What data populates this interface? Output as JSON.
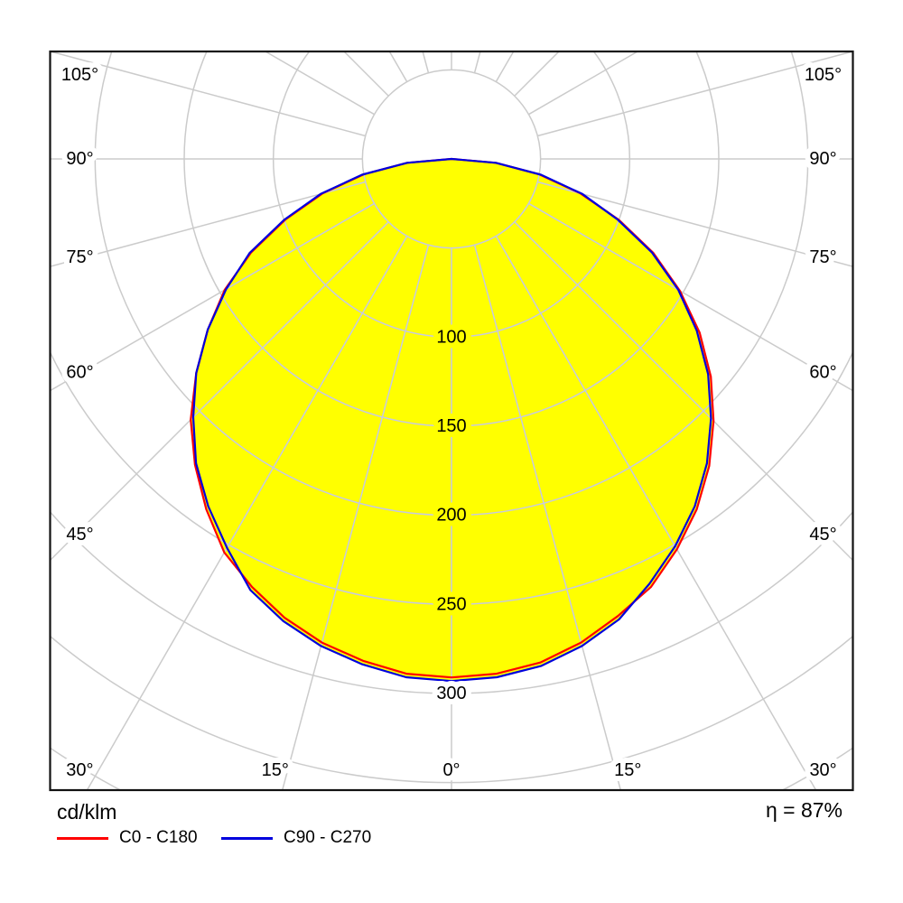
{
  "chart_data": {
    "type": "polar",
    "subtype": "photometric-intensity-distribution",
    "unit_label": "cd/klm",
    "efficiency_label": "η = 87%",
    "fill_color": "#ffff00",
    "grid_color": "#cbcbcb",
    "grid_color_inside": "#c6c9e2",
    "label_color": "#000000",
    "angle_axis": {
      "step_deg": 15,
      "side_labels_deg": [
        45,
        60,
        75,
        90,
        105
      ],
      "bottom_labels_deg": [
        -30,
        -15,
        0,
        15,
        30
      ]
    },
    "radial_axis": {
      "tick_step": 50,
      "max_ring": 400,
      "labeled_ticks": [
        100,
        150,
        200,
        250,
        300
      ]
    },
    "gamma_deg": [
      -90,
      -85,
      -80,
      -75,
      -70,
      -65,
      -60,
      -55,
      -50,
      -45,
      -40,
      -35,
      -30,
      -25,
      -20,
      -15,
      -10,
      -5,
      0,
      5,
      10,
      15,
      20,
      25,
      30,
      35,
      40,
      45,
      50,
      55,
      60,
      65,
      70,
      75,
      80,
      85,
      90
    ],
    "series": [
      {
        "name": "C0 - C180",
        "color": "#ff0000",
        "values": [
          0,
          25,
          50,
          75,
          99,
          124,
          147,
          167,
          187,
          207,
          224,
          240,
          255,
          265,
          274,
          281,
          286,
          290,
          291,
          290,
          287,
          281,
          273,
          265,
          253,
          240,
          225,
          208,
          190,
          170,
          148,
          125,
          100,
          75,
          50,
          25,
          0
        ]
      },
      {
        "name": "C90 - C270",
        "color": "#0000dd",
        "values": [
          0,
          25,
          51,
          76,
          100,
          125,
          146,
          167,
          187,
          205,
          223,
          238,
          252,
          267,
          276,
          283,
          288,
          292,
          293,
          292,
          289,
          283,
          275,
          263,
          251,
          238,
          223,
          206,
          188,
          168,
          147,
          124,
          99,
          76,
          51,
          25,
          0
        ]
      }
    ]
  }
}
